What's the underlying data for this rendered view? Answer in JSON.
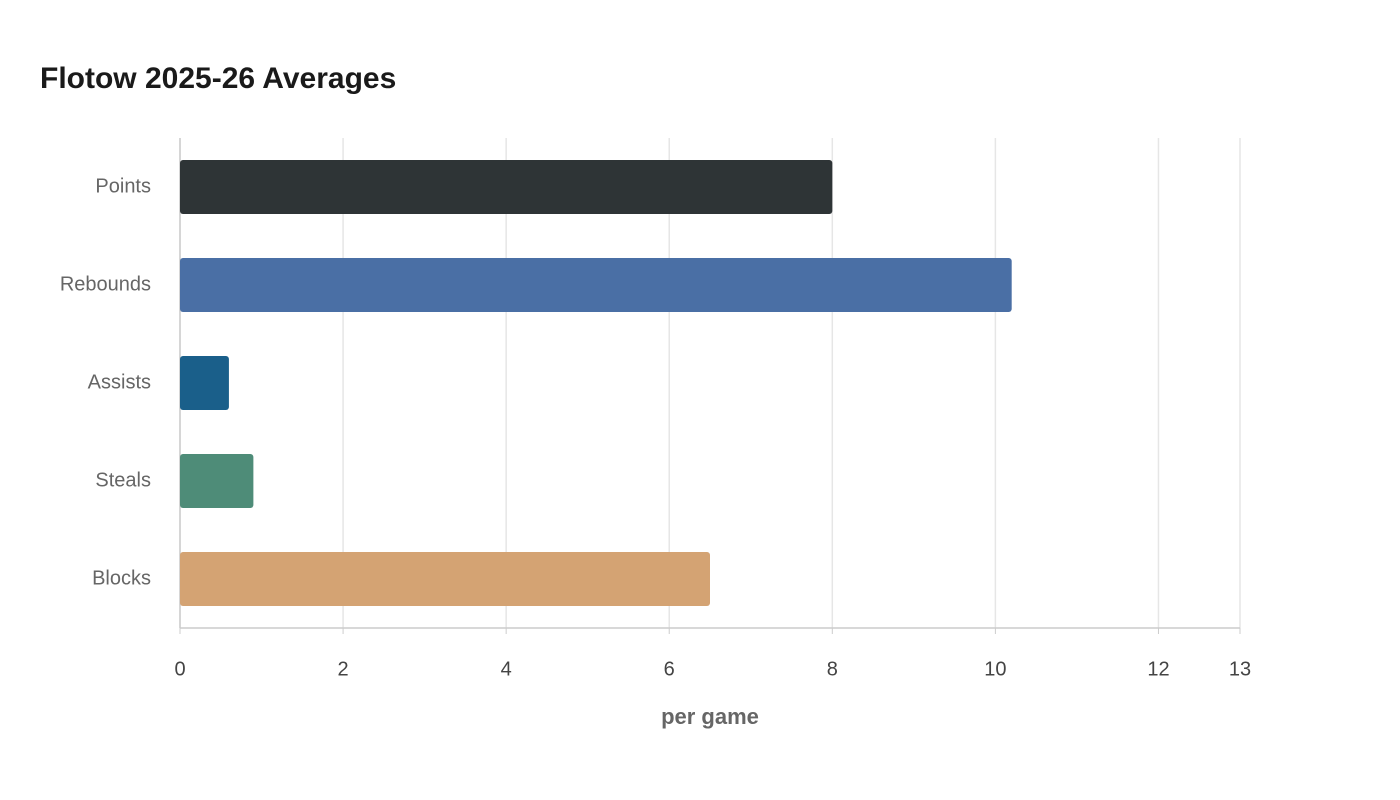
{
  "chart_data": {
    "type": "hbar",
    "title": "Flotow 2025-26 Averages",
    "x_label": "per game",
    "categories": [
      "Points",
      "Rebounds",
      "Assists",
      "Steals",
      "Blocks"
    ],
    "values": [
      8.0,
      10.2,
      0.6,
      0.9,
      6.5
    ],
    "colors": [
      "#2e3436",
      "#4a6fa5",
      "#1a5f8a",
      "#4e8c78",
      "#d4a373"
    ],
    "xlim": [
      0,
      13
    ],
    "xticks": [
      0,
      2,
      4,
      6,
      8,
      10,
      12,
      13
    ],
    "grid": true
  }
}
